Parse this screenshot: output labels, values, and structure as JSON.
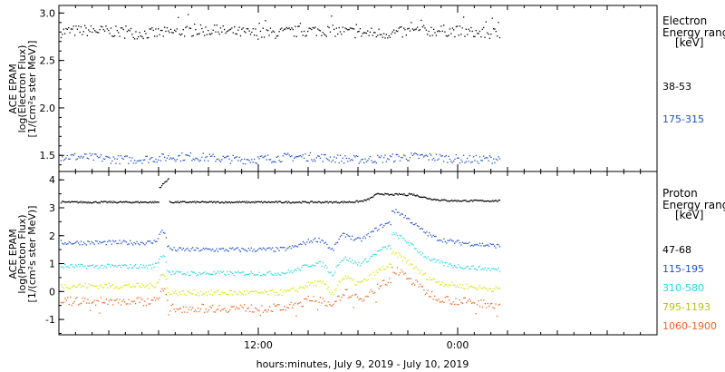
{
  "chart_data": [
    {
      "type": "scatter",
      "panel": "electron",
      "ylabel_lines": [
        "ACE EPAM",
        "log(Electron Flux)",
        "[1/(cm²s ster MeV)]"
      ],
      "yticks": [
        "1.5",
        "2.0",
        "2.5",
        "3.0"
      ],
      "ylim": [
        1.33,
        3.08
      ],
      "legend_title": [
        "Electron",
        "Energy ranges",
        "[keV]"
      ],
      "series": [
        {
          "name": "38-53",
          "color": "#000000",
          "level": 2.8,
          "spread": 0.06
        },
        {
          "name": "175-315",
          "color": "#1f4fd0",
          "level": 1.47,
          "spread": 0.045
        }
      ]
    },
    {
      "type": "scatter",
      "panel": "proton",
      "ylabel_lines": [
        "ACE EPAM",
        "log(Proton Flux)",
        "[1/(cm²s ster MeV)]"
      ],
      "yticks": [
        "-1",
        "0",
        "1",
        "2",
        "3",
        "4"
      ],
      "ylim": [
        -1.55,
        4.3
      ],
      "legend_title": [
        "Proton",
        "Energy ranges",
        "[keV]"
      ],
      "series": [
        {
          "name": "47-68",
          "color": "#000000",
          "base": 3.2,
          "spread": 0.03
        },
        {
          "name": "115-195",
          "color": "#1f4fd0",
          "base": 1.5,
          "spread": 0.08
        },
        {
          "name": "310-580",
          "color": "#22d8e0",
          "base": 0.65,
          "spread": 0.08
        },
        {
          "name": "795-1193",
          "color": "#d8e600",
          "base": -0.05,
          "spread": 0.1
        },
        {
          "name": "1060-1900",
          "color": "#f0641a",
          "base": -0.6,
          "spread": 0.15
        }
      ]
    }
  ],
  "x_axis": {
    "tick_labels": [
      "12:00",
      "0:00"
    ],
    "tick_hours": [
      12,
      24
    ],
    "range_hours": [
      0,
      36
    ],
    "data_end_hours": 26.5,
    "title": "hours:minutes, July  9, 2019 - July 10, 2019"
  }
}
